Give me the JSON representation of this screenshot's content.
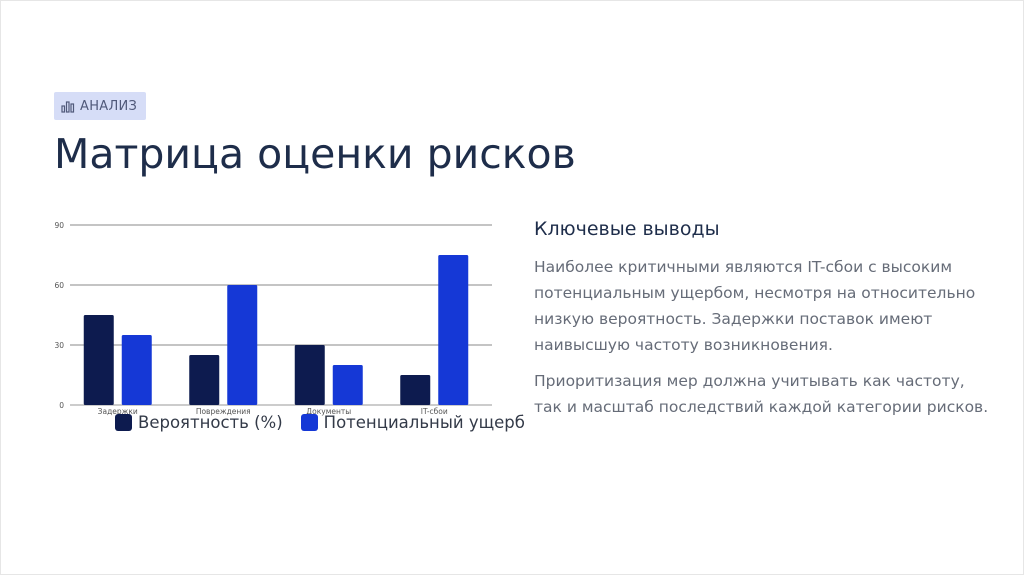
{
  "badge": {
    "icon": "bar-chart-icon",
    "label": "АНАЛИЗ"
  },
  "title": "Матрица оценки рисков",
  "chart_data": {
    "type": "bar",
    "categories": [
      "Задержки",
      "Повреждения",
      "Документы",
      "IT-сбои"
    ],
    "series": [
      {
        "name": "Вероятность (%)",
        "values": [
          45,
          25,
          30,
          15
        ],
        "color": "#0d1b4f"
      },
      {
        "name": "Потенциальный ущерб",
        "values": [
          35,
          60,
          20,
          75
        ],
        "color": "#1538d6"
      }
    ],
    "yticks": [
      "0",
      "30",
      "60",
      "90"
    ],
    "ylim": [
      0,
      90
    ],
    "grid": true,
    "legend_position": "bottom"
  },
  "findings": {
    "heading": "Ключевые выводы",
    "paragraph1": "Наиболее критичными являются IT-сбои с высоким потенциальным ущербом, несмотря на относительно низкую вероятность. Задержки поставок имеют наивысшую частоту возникновения.",
    "paragraph2": "Приоритизация мер должна учитывать как частоту, так и масштаб последствий каждой категории рисков."
  }
}
